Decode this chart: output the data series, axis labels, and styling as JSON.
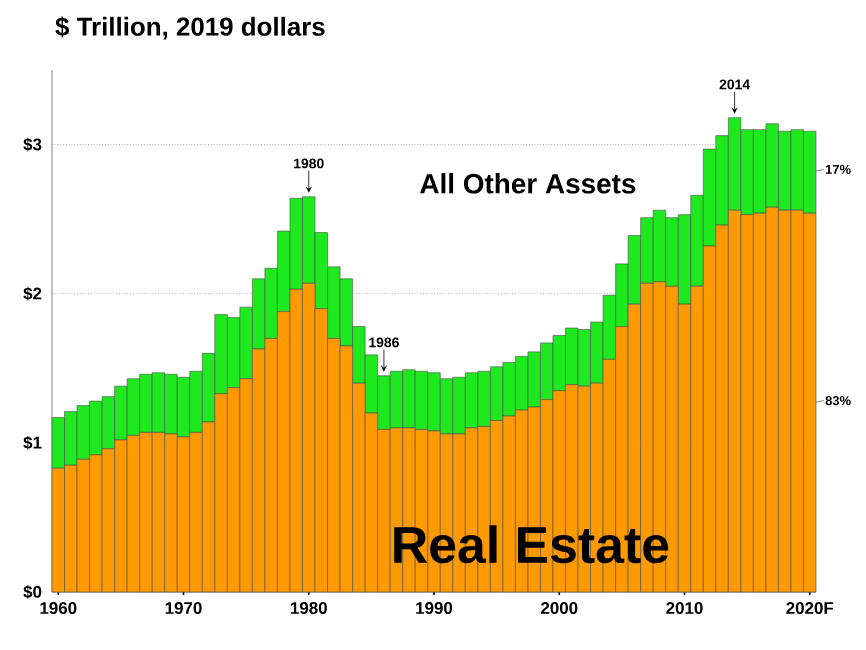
{
  "chart_data": {
    "type": "bar",
    "stacked": true,
    "title": "$ Trillion, 2019 dollars",
    "x": [
      1960,
      1961,
      1962,
      1963,
      1964,
      1965,
      1966,
      1967,
      1968,
      1969,
      1970,
      1971,
      1972,
      1973,
      1974,
      1975,
      1976,
      1977,
      1978,
      1979,
      1980,
      1981,
      1982,
      1983,
      1984,
      1985,
      1986,
      1987,
      1988,
      1989,
      1990,
      1991,
      1992,
      1993,
      1994,
      1995,
      1996,
      1997,
      1998,
      1999,
      2000,
      2001,
      2002,
      2003,
      2004,
      2005,
      2006,
      2007,
      2008,
      2009,
      2010,
      2011,
      2012,
      2013,
      2014,
      2015,
      2016,
      2017,
      2018,
      2019,
      2020
    ],
    "series": [
      {
        "name": "Real Estate",
        "color": "#ff9900",
        "values": [
          0.83,
          0.85,
          0.89,
          0.92,
          0.96,
          1.02,
          1.05,
          1.07,
          1.07,
          1.06,
          1.04,
          1.07,
          1.14,
          1.33,
          1.37,
          1.43,
          1.63,
          1.7,
          1.88,
          2.03,
          2.07,
          1.9,
          1.7,
          1.65,
          1.4,
          1.2,
          1.09,
          1.1,
          1.1,
          1.09,
          1.08,
          1.06,
          1.06,
          1.1,
          1.11,
          1.15,
          1.18,
          1.22,
          1.24,
          1.29,
          1.35,
          1.39,
          1.38,
          1.4,
          1.56,
          1.78,
          1.93,
          2.07,
          2.08,
          2.05,
          1.93,
          2.05,
          2.32,
          2.46,
          2.56,
          2.53,
          2.54,
          2.58,
          2.56,
          2.56,
          2.54
        ]
      },
      {
        "name": "All Other Assets",
        "color": "#1ee81e",
        "values": [
          0.34,
          0.36,
          0.36,
          0.36,
          0.35,
          0.36,
          0.38,
          0.39,
          0.4,
          0.4,
          0.4,
          0.41,
          0.46,
          0.53,
          0.47,
          0.48,
          0.47,
          0.47,
          0.54,
          0.61,
          0.58,
          0.51,
          0.48,
          0.45,
          0.38,
          0.39,
          0.36,
          0.38,
          0.39,
          0.39,
          0.39,
          0.37,
          0.38,
          0.37,
          0.37,
          0.36,
          0.36,
          0.36,
          0.37,
          0.38,
          0.37,
          0.38,
          0.38,
          0.41,
          0.43,
          0.42,
          0.46,
          0.44,
          0.48,
          0.46,
          0.6,
          0.61,
          0.65,
          0.6,
          0.62,
          0.57,
          0.56,
          0.56,
          0.53,
          0.54,
          0.55
        ]
      }
    ],
    "xlim": [
      1959.5,
      2020.5
    ],
    "xticks": [
      1960,
      1970,
      1980,
      1990,
      2000,
      2010,
      {
        "value": 2020,
        "label": "2020F"
      }
    ],
    "ylim": [
      0,
      3.5
    ],
    "yticks": [
      {
        "value": 0,
        "label": "$0"
      },
      {
        "value": 1,
        "label": "$1"
      },
      {
        "value": 2,
        "label": "$2"
      },
      {
        "value": 3,
        "label": "$3"
      }
    ],
    "grid": "y",
    "annotations": [
      {
        "text": "1980",
        "x": 1980,
        "y": 2.65
      },
      {
        "text": "1986",
        "x": 1986,
        "y": 1.45
      },
      {
        "text": "2014",
        "x": 2014,
        "y": 3.18
      },
      {
        "text": "17%",
        "x": 2020,
        "y": 2.82
      },
      {
        "text": "83%",
        "x": 2020,
        "y": 1.27
      }
    ]
  }
}
